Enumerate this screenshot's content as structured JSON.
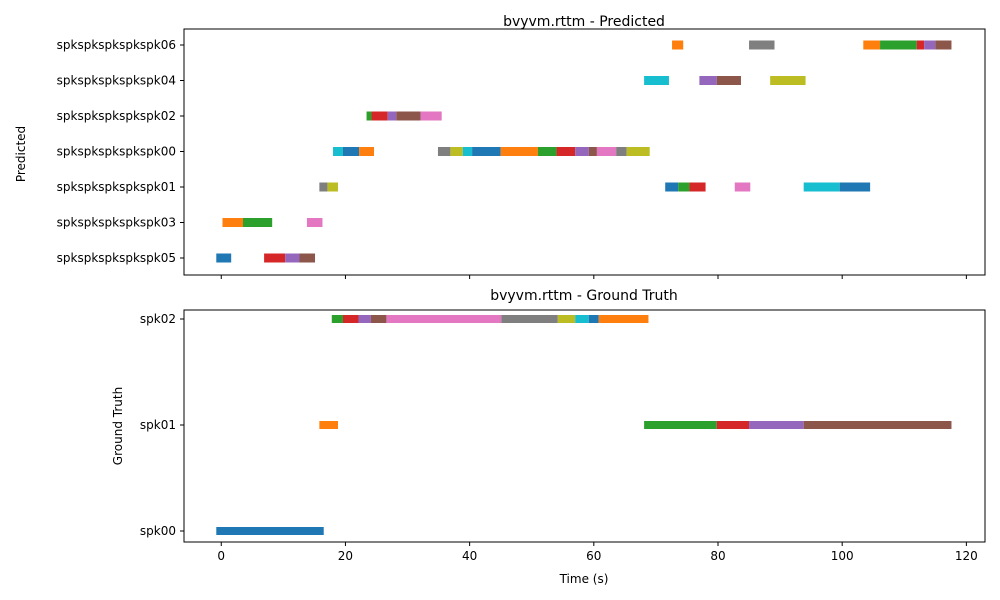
{
  "chart_data": [
    {
      "type": "timeline",
      "title": "bvyvm.rttm - Predicted",
      "ylabel": "Predicted",
      "xlim": [
        -6,
        123
      ],
      "show_x_ticklabels": false,
      "grid": false,
      "xticks": [
        0,
        20,
        40,
        60,
        80,
        100,
        120
      ],
      "rows": [
        "spkspkspkspkspk05",
        "spkspkspkspkspk03",
        "spkspkspkspkspk01",
        "spkspkspkspkspk00",
        "spkspkspkspkspk02",
        "spkspkspkspkspk04",
        "spkspkspkspkspk06"
      ],
      "segments": [
        {
          "row": "spkspkspkspkspk05",
          "start": -0.8,
          "end": 1.6,
          "color": "#1f77b4"
        },
        {
          "row": "spkspkspkspkspk05",
          "start": 6.9,
          "end": 10.3,
          "color": "#d62728"
        },
        {
          "row": "spkspkspkspkspk05",
          "start": 10.3,
          "end": 12.6,
          "color": "#9467bd"
        },
        {
          "row": "spkspkspkspkspk05",
          "start": 12.6,
          "end": 15.1,
          "color": "#8c564b"
        },
        {
          "row": "spkspkspkspkspk03",
          "start": 0.2,
          "end": 3.5,
          "color": "#ff7f0e"
        },
        {
          "row": "spkspkspkspkspk03",
          "start": 3.5,
          "end": 8.2,
          "color": "#2ca02c"
        },
        {
          "row": "spkspkspkspkspk03",
          "start": 13.8,
          "end": 16.3,
          "color": "#e377c2"
        },
        {
          "row": "spkspkspkspkspk01",
          "start": 15.8,
          "end": 17.1,
          "color": "#7f7f7f"
        },
        {
          "row": "spkspkspkspkspk01",
          "start": 17.1,
          "end": 18.8,
          "color": "#bcbd22"
        },
        {
          "row": "spkspkspkspkspk01",
          "start": 71.5,
          "end": 73.6,
          "color": "#1f77b4"
        },
        {
          "row": "spkspkspkspkspk01",
          "start": 73.6,
          "end": 75.4,
          "color": "#2ca02c"
        },
        {
          "row": "spkspkspkspkspk01",
          "start": 75.4,
          "end": 78.0,
          "color": "#d62728"
        },
        {
          "row": "spkspkspkspkspk01",
          "start": 82.7,
          "end": 85.2,
          "color": "#e377c2"
        },
        {
          "row": "spkspkspkspkspk01",
          "start": 93.8,
          "end": 99.6,
          "color": "#17becf"
        },
        {
          "row": "spkspkspkspkspk01",
          "start": 99.6,
          "end": 104.5,
          "color": "#1f77b4"
        },
        {
          "row": "spkspkspkspkspk00",
          "start": 18.0,
          "end": 19.6,
          "color": "#17becf"
        },
        {
          "row": "spkspkspkspkspk00",
          "start": 19.6,
          "end": 22.2,
          "color": "#1f77b4"
        },
        {
          "row": "spkspkspkspkspk00",
          "start": 22.2,
          "end": 24.6,
          "color": "#ff7f0e"
        },
        {
          "row": "spkspkspkspkspk00",
          "start": 34.9,
          "end": 36.9,
          "color": "#7f7f7f"
        },
        {
          "row": "spkspkspkspkspk00",
          "start": 36.9,
          "end": 38.9,
          "color": "#bcbd22"
        },
        {
          "row": "spkspkspkspkspk00",
          "start": 38.9,
          "end": 40.4,
          "color": "#17becf"
        },
        {
          "row": "spkspkspkspkspk00",
          "start": 40.4,
          "end": 45.0,
          "color": "#1f77b4"
        },
        {
          "row": "spkspkspkspkspk00",
          "start": 45.0,
          "end": 51.0,
          "color": "#ff7f0e"
        },
        {
          "row": "spkspkspkspkspk00",
          "start": 51.0,
          "end": 54.0,
          "color": "#2ca02c"
        },
        {
          "row": "spkspkspkspkspk00",
          "start": 54.0,
          "end": 57.0,
          "color": "#d62728"
        },
        {
          "row": "spkspkspkspkspk00",
          "start": 57.0,
          "end": 59.2,
          "color": "#9467bd"
        },
        {
          "row": "spkspkspkspkspk00",
          "start": 59.2,
          "end": 60.5,
          "color": "#8c564b"
        },
        {
          "row": "spkspkspkspkspk00",
          "start": 60.5,
          "end": 63.6,
          "color": "#e377c2"
        },
        {
          "row": "spkspkspkspkspk00",
          "start": 63.6,
          "end": 65.3,
          "color": "#7f7f7f"
        },
        {
          "row": "spkspkspkspkspk00",
          "start": 65.3,
          "end": 69.0,
          "color": "#bcbd22"
        },
        {
          "row": "spkspkspkspkspk02",
          "start": 23.4,
          "end": 24.2,
          "color": "#2ca02c"
        },
        {
          "row": "spkspkspkspkspk02",
          "start": 24.2,
          "end": 26.8,
          "color": "#d62728"
        },
        {
          "row": "spkspkspkspkspk02",
          "start": 26.8,
          "end": 28.2,
          "color": "#9467bd"
        },
        {
          "row": "spkspkspkspkspk02",
          "start": 28.2,
          "end": 32.1,
          "color": "#8c564b"
        },
        {
          "row": "spkspkspkspkspk02",
          "start": 32.1,
          "end": 35.5,
          "color": "#e377c2"
        },
        {
          "row": "spkspkspkspkspk04",
          "start": 68.1,
          "end": 72.1,
          "color": "#17becf"
        },
        {
          "row": "spkspkspkspkspk04",
          "start": 77.0,
          "end": 79.8,
          "color": "#9467bd"
        },
        {
          "row": "spkspkspkspkspk04",
          "start": 79.8,
          "end": 83.7,
          "color": "#8c564b"
        },
        {
          "row": "spkspkspkspkspk04",
          "start": 88.4,
          "end": 94.1,
          "color": "#bcbd22"
        },
        {
          "row": "spkspkspkspkspk06",
          "start": 72.6,
          "end": 74.4,
          "color": "#ff7f0e"
        },
        {
          "row": "spkspkspkspkspk06",
          "start": 85.0,
          "end": 89.1,
          "color": "#7f7f7f"
        },
        {
          "row": "spkspkspkspkspk06",
          "start": 103.4,
          "end": 106.1,
          "color": "#ff7f0e"
        },
        {
          "row": "spkspkspkspkspk06",
          "start": 106.1,
          "end": 112.0,
          "color": "#2ca02c"
        },
        {
          "row": "spkspkspkspkspk06",
          "start": 112.0,
          "end": 113.2,
          "color": "#d62728"
        },
        {
          "row": "spkspkspkspkspk06",
          "start": 113.2,
          "end": 115.0,
          "color": "#9467bd"
        },
        {
          "row": "spkspkspkspkspk06",
          "start": 115.0,
          "end": 117.6,
          "color": "#8c564b"
        }
      ]
    },
    {
      "type": "timeline",
      "title": "bvyvm.rttm - Ground Truth",
      "ylabel": "Ground Truth",
      "xlabel": "Time (s)",
      "xlim": [
        -6,
        123
      ],
      "show_x_ticklabels": true,
      "grid": false,
      "xticks": [
        0,
        20,
        40,
        60,
        80,
        100,
        120
      ],
      "rows": [
        "spk00",
        "spk01",
        "spk02"
      ],
      "segments": [
        {
          "row": "spk00",
          "start": -0.8,
          "end": 16.5,
          "color": "#1f77b4"
        },
        {
          "row": "spk01",
          "start": 15.8,
          "end": 18.8,
          "color": "#ff7f0e"
        },
        {
          "row": "spk01",
          "start": 68.1,
          "end": 79.8,
          "color": "#2ca02c"
        },
        {
          "row": "spk01",
          "start": 79.8,
          "end": 85.0,
          "color": "#d62728"
        },
        {
          "row": "spk01",
          "start": 85.0,
          "end": 93.8,
          "color": "#9467bd"
        },
        {
          "row": "spk01",
          "start": 93.8,
          "end": 117.6,
          "color": "#8c564b"
        },
        {
          "row": "spk02",
          "start": 17.8,
          "end": 19.6,
          "color": "#2ca02c"
        },
        {
          "row": "spk02",
          "start": 19.6,
          "end": 22.1,
          "color": "#d62728"
        },
        {
          "row": "spk02",
          "start": 22.1,
          "end": 24.1,
          "color": "#9467bd"
        },
        {
          "row": "spk02",
          "start": 24.1,
          "end": 26.6,
          "color": "#8c564b"
        },
        {
          "row": "spk02",
          "start": 26.6,
          "end": 45.1,
          "color": "#e377c2"
        },
        {
          "row": "spk02",
          "start": 45.1,
          "end": 54.2,
          "color": "#7f7f7f"
        },
        {
          "row": "spk02",
          "start": 54.2,
          "end": 57.0,
          "color": "#bcbd22"
        },
        {
          "row": "spk02",
          "start": 57.0,
          "end": 59.2,
          "color": "#17becf"
        },
        {
          "row": "spk02",
          "start": 59.2,
          "end": 60.8,
          "color": "#1f77b4"
        },
        {
          "row": "spk02",
          "start": 60.8,
          "end": 68.8,
          "color": "#ff7f0e"
        }
      ]
    }
  ]
}
